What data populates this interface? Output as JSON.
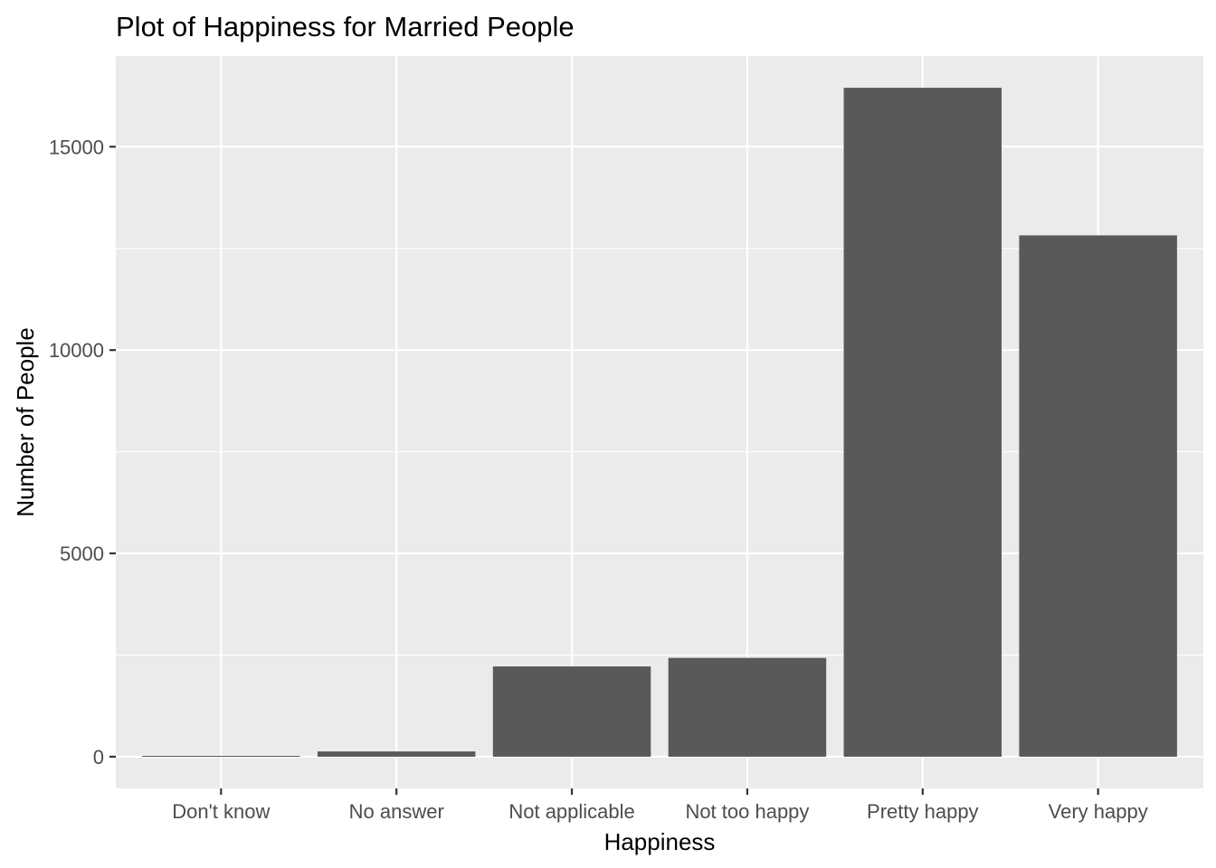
{
  "chart_data": {
    "type": "bar",
    "title": "Plot of Happiness for Married People",
    "xlabel": "Happiness",
    "ylabel": "Number of People",
    "categories": [
      "Don't know",
      "No answer",
      "Not applicable",
      "Not too happy",
      "Pretty happy",
      "Very happy"
    ],
    "values": [
      20,
      130,
      2220,
      2430,
      16450,
      12820
    ],
    "ylim": [
      -780,
      17230
    ],
    "yticks": [
      0,
      5000,
      10000,
      15000
    ],
    "ytick_labels": [
      "0",
      "5000",
      "10000",
      "15000"
    ],
    "grid": true,
    "colors": {
      "panel": "#ebebeb",
      "grid": "#ffffff",
      "bar": "#595959",
      "tick": "#333333",
      "tick_label": "#4d4d4d"
    }
  }
}
